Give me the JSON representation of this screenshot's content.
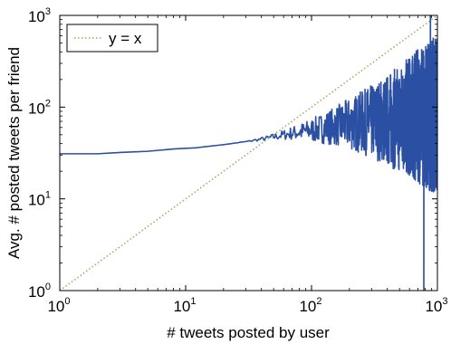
{
  "chart_data": {
    "type": "line",
    "xlabel": "# tweets posted by user",
    "ylabel": "Avg. # posted tweets per friend",
    "xscale": "log",
    "yscale": "log",
    "xlim": [
      1,
      1000
    ],
    "ylim": [
      1,
      1000
    ],
    "x_ticks": [
      {
        "base": "10",
        "exp": "0",
        "value": 1
      },
      {
        "base": "10",
        "exp": "1",
        "value": 10
      },
      {
        "base": "10",
        "exp": "2",
        "value": 100
      },
      {
        "base": "10",
        "exp": "3",
        "value": 1000
      }
    ],
    "y_ticks": [
      {
        "base": "10",
        "exp": "0",
        "value": 1
      },
      {
        "base": "10",
        "exp": "1",
        "value": 10
      },
      {
        "base": "10",
        "exp": "2",
        "value": 100
      },
      {
        "base": "10",
        "exp": "3",
        "value": 1000
      }
    ],
    "legend": {
      "placement": "top-left",
      "entries": [
        "y = x"
      ]
    },
    "grid": false,
    "series": [
      {
        "name": "",
        "color": "#2b4fa3",
        "style": "solid",
        "noise": "increasing fluctuation above x≈150",
        "points": [
          {
            "x": 1,
            "y": 31
          },
          {
            "x": 2,
            "y": 31
          },
          {
            "x": 3,
            "y": 32
          },
          {
            "x": 5,
            "y": 33
          },
          {
            "x": 8,
            "y": 35
          },
          {
            "x": 12,
            "y": 36
          },
          {
            "x": 20,
            "y": 39
          },
          {
            "x": 30,
            "y": 42
          },
          {
            "x": 45,
            "y": 46
          },
          {
            "x": 70,
            "y": 52
          },
          {
            "x": 100,
            "y": 56
          },
          {
            "x": 150,
            "y": 62
          },
          {
            "x": 200,
            "y": 66
          },
          {
            "x": 300,
            "y": 70
          },
          {
            "x": 500,
            "y": 75
          },
          {
            "x": 700,
            "y": 80
          },
          {
            "x": 1000,
            "y": 85
          }
        ]
      },
      {
        "name": "y = x",
        "color": "#9aaa5c",
        "style": "dotted",
        "points": [
          {
            "x": 1,
            "y": 1
          },
          {
            "x": 1000,
            "y": 1000
          }
        ]
      }
    ]
  }
}
